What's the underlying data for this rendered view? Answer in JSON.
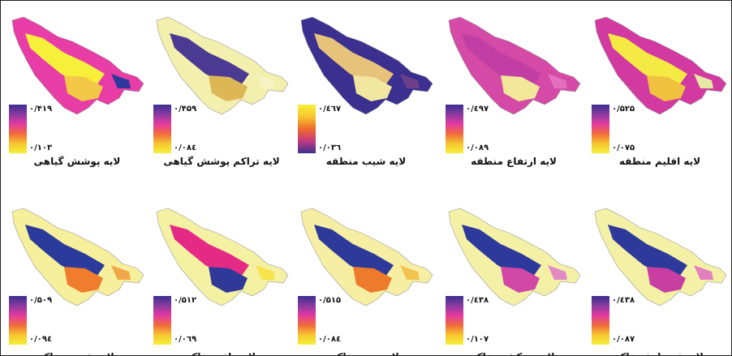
{
  "panels": [
    {
      "title": "لایه پوشش گیاهی",
      "max": "۰/۴۱۹",
      "min": "۰/۱۰۳",
      "scheme": "magenta",
      "base": "#e83ca7",
      "patches": [
        "#f6f03a",
        "#f3c847",
        "#2e3a9b"
      ]
    },
    {
      "title": "لایه تراکم پوشش گیاهی",
      "max": "۰/۴۵۹",
      "min": "۰/۰۸٤",
      "scheme": "magenta",
      "base": "#f3efad",
      "patches": [
        "#4b3a92",
        "#ddb656",
        "#f6f2c2"
      ]
    },
    {
      "title": "لایه شیب منطقه",
      "max": "۰/٤٦٧",
      "min": "۰/۰۳٦",
      "scheme": "yellowblue",
      "base": "#3b2f8f",
      "patches": [
        "#e6c27a",
        "#f2e7a0",
        "#6d3f8a"
      ]
    },
    {
      "title": "لایه ارتفاع منطقه",
      "max": "۰/٤۹۷",
      "min": "۰/۰۸۹",
      "scheme": "magenta",
      "base": "#d44aa6",
      "patches": [
        "#c13ea4",
        "#f3e89a",
        "#e46fbf"
      ]
    },
    {
      "title": "لایه اقلیم منطقه",
      "max": "۰/۵۲۵",
      "min": "۰/۰۷۵",
      "scheme": "magenta",
      "base": "#d23aa2",
      "patches": [
        "#f5ea43",
        "#f0c13f",
        "#e5e8a2"
      ]
    },
    {
      "title": "لایه شوری خاک",
      "max": "۰/۵۰۹",
      "min": "۰/۰۹٤",
      "scheme": "magenta",
      "base": "#f6ef9c",
      "patches": [
        "#2b3b9c",
        "#f07c2d",
        "#f1a64a"
      ]
    },
    {
      "title": "لایه بافت خاک",
      "max": "۰/۵۱۲",
      "min": "۰/۰٦۹",
      "scheme": "magenta",
      "base": "#f4f1a2",
      "patches": [
        "#e52a86",
        "#2f3a98",
        "#f7e34a"
      ]
    },
    {
      "title": "لایه عمق خاک",
      "max": "۰/۵۱۵",
      "min": "۰/۰۸٤",
      "scheme": "magenta",
      "base": "#f6efa3",
      "patches": [
        "#2d3a9a",
        "#ee7a2c",
        "#f2c250"
      ]
    },
    {
      "title": "لایه زهکشی خاک",
      "max": "۰/٤۳۸",
      "min": "۰/۱۰۷",
      "scheme": "magenta",
      "base": "#f4f1a6",
      "patches": [
        "#2e3a9b",
        "#d248a6",
        "#e38ac5"
      ]
    },
    {
      "title": "لایه فرسایش خاک",
      "max": "۰/٤۳۸",
      "min": "۰/۰۸۷",
      "scheme": "magenta",
      "base": "#f4f1a6",
      "patches": [
        "#2e3a9b",
        "#c83ea2",
        "#e27fbf"
      ]
    }
  ]
}
